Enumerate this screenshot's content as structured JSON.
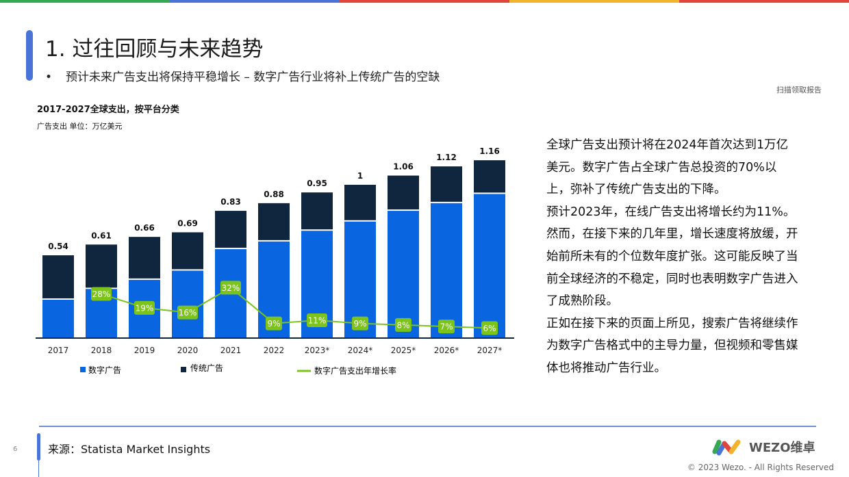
{
  "header": {
    "title": "1. 过往回顾与未来趋势",
    "bullet": "•",
    "subtitle": "预计未来广告支出将保持平稳增长 – 数字广告行业将补上传统广告的空缺",
    "scan_note": "扫描领取报告"
  },
  "stripe_colors": [
    "#34a853",
    "#4a73d8",
    "#e0443a",
    "#f2b42a",
    "#e0443a"
  ],
  "chart_data": {
    "type": "bar",
    "stacked": true,
    "title": "2017-2027全球支出，按平台分类",
    "unit_label": "广告支出 单位：万亿美元",
    "categories": [
      "2017",
      "2018",
      "2019",
      "2020",
      "2021",
      "2022",
      "2023*",
      "2024*",
      "2025*",
      "2026*",
      "2027*"
    ],
    "totals": [
      "0.54",
      "0.61",
      "0.66",
      "0.69",
      "0.83",
      "0.88",
      "0.95",
      "1",
      "1.06",
      "1.12",
      "1.16"
    ],
    "series": [
      {
        "name": "数字广告",
        "color": "#0a66e0",
        "values": [
          0.25,
          0.32,
          0.38,
          0.44,
          0.58,
          0.63,
          0.7,
          0.76,
          0.83,
          0.88,
          0.94
        ]
      },
      {
        "name": "传统广告",
        "color": "#10263f",
        "values": [
          0.29,
          0.29,
          0.28,
          0.25,
          0.25,
          0.25,
          0.25,
          0.24,
          0.23,
          0.24,
          0.22
        ]
      },
      {
        "name": "数字广告支出年增长率",
        "type": "line",
        "color": "#7cc31c",
        "x": [
          "2018",
          "2019",
          "2020",
          "2021",
          "2022",
          "2023*",
          "2024*",
          "2025*",
          "2026*",
          "2027*"
        ],
        "values": [
          28,
          19,
          16,
          32,
          9,
          11,
          9,
          8,
          7,
          6
        ],
        "labels": [
          "28%",
          "19%",
          "16%",
          "32%",
          "9%",
          "11%",
          "9%",
          "8%",
          "7%",
          "6%"
        ]
      }
    ],
    "legend": "bottom"
  },
  "paragraphs": [
    "全球广告支出预计将在2024年首次达到1万亿美元。数字广告占全球广告总投资的70%以上，弥补了传统广告支出的下降。",
    "预计2023年，在线广告支出将增长约为11%。然而，在接下来的几年里，增长速度将放缓，开始前所未有的个位数年度扩张。这可能反映了当前全球经济的不稳定，同时也表明数字广告进入了成熟阶段。",
    "正如在接下来的页面上所见，搜索广告将继续作为数字广告格式中的主导力量，但视频和零售媒体也将推动广告行业。"
  ],
  "footer": {
    "page": "6",
    "source": "来源：Statista Market Insights",
    "logo": "WEZO维卓",
    "copyright": "© 2023 Wezo. - All Rights Reserved"
  }
}
